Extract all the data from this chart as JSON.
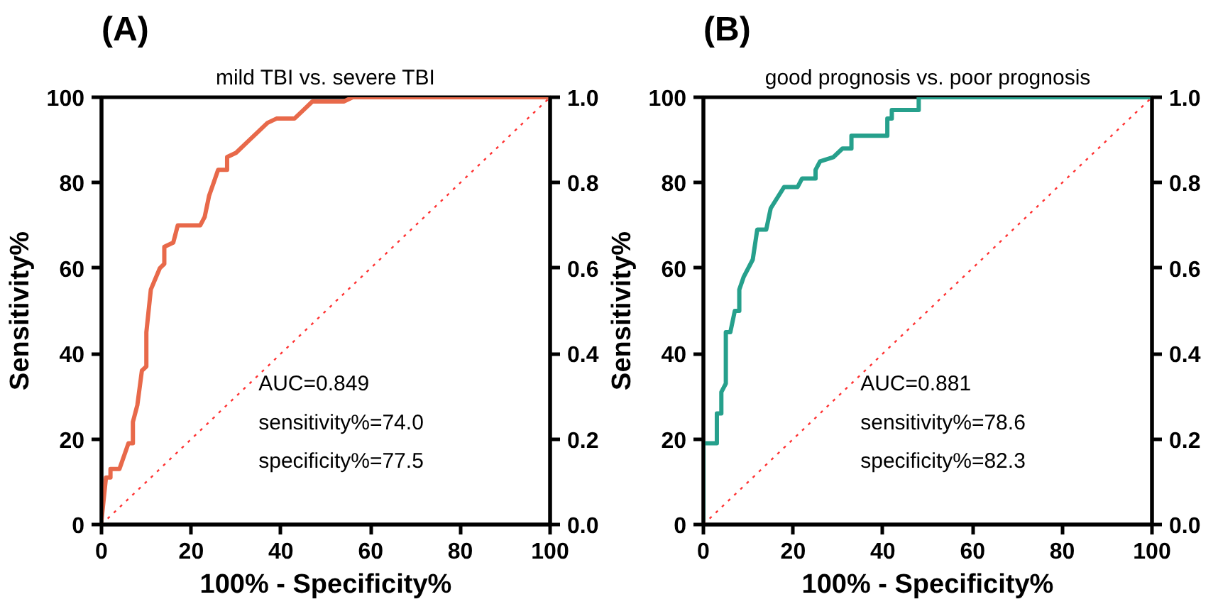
{
  "chart_data": [
    {
      "type": "line",
      "title": "mild TBI vs. severe TBI",
      "xlabel": "100% - Specificity%",
      "ylabel": "Sensitivity%",
      "xlim": [
        0,
        100
      ],
      "ylim": [
        0,
        100
      ],
      "xticks": [
        0,
        20,
        40,
        60,
        80,
        100
      ],
      "yticks": [
        0,
        20,
        40,
        60,
        80,
        100
      ],
      "y2lim": [
        0,
        1
      ],
      "y2ticks": [
        {
          "value": 0,
          "label": "0.0"
        },
        {
          "value": 0.2,
          "label": "0.2"
        },
        {
          "value": 0.4,
          "label": "0.4"
        },
        {
          "value": 0.6,
          "label": "0.6"
        },
        {
          "value": 0.8,
          "label": "0.8"
        },
        {
          "value": 1,
          "label": "1.0"
        }
      ],
      "grid": false,
      "annotations": [
        "(A)",
        "AUC=0.849",
        "sensitivity%=74.0",
        "specificity%=77.5"
      ],
      "series": [
        {
          "color": "#e8694a",
          "line_style": "solid",
          "x": [
            0,
            1,
            2,
            2,
            4,
            5,
            6,
            7,
            7,
            8,
            9,
            10,
            10,
            11,
            13,
            14,
            14,
            16,
            17,
            22,
            23,
            24,
            25,
            26,
            28,
            28,
            30,
            33,
            37,
            39,
            43,
            45,
            47,
            54,
            56,
            100
          ],
          "values": [
            1,
            11,
            11,
            13,
            13,
            16,
            19,
            19,
            24,
            28,
            36,
            37,
            45,
            55,
            60,
            61,
            65,
            66,
            70,
            70,
            72,
            77,
            80,
            83,
            83,
            86,
            87,
            90,
            94,
            95,
            95,
            97,
            99,
            99,
            100,
            100
          ]
        },
        {
          "color": "#ff3333",
          "line_style": "dotted",
          "x": [
            0,
            100
          ],
          "values": [
            0,
            100
          ]
        }
      ]
    },
    {
      "type": "line",
      "title": "good prognosis vs. poor prognosis",
      "xlabel": "100% - Specificity%",
      "ylabel": "Sensitivity%",
      "xlim": [
        0,
        100
      ],
      "ylim": [
        0,
        100
      ],
      "xticks": [
        0,
        20,
        40,
        60,
        80,
        100
      ],
      "yticks": [
        0,
        20,
        40,
        60,
        80,
        100
      ],
      "y2lim": [
        0,
        1
      ],
      "y2ticks": [
        {
          "value": 0,
          "label": "0.0"
        },
        {
          "value": 0.2,
          "label": "0.2"
        },
        {
          "value": 0.4,
          "label": "0.4"
        },
        {
          "value": 0.6,
          "label": "0.6"
        },
        {
          "value": 0.8,
          "label": "0.8"
        },
        {
          "value": 1,
          "label": "1.0"
        }
      ],
      "grid": false,
      "annotations": [
        "(B)",
        "AUC=0.881",
        "sensitivity%=78.6",
        "specificity%=82.3"
      ],
      "series": [
        {
          "color": "#26a08c",
          "line_style": "solid",
          "x": [
            0,
            0,
            3,
            3,
            4,
            4,
            5,
            5,
            6,
            7,
            8,
            8,
            9,
            11,
            12,
            14,
            15,
            18,
            21,
            22,
            25,
            25,
            26,
            29,
            31,
            33,
            33,
            41,
            41,
            42,
            42,
            48,
            48,
            100
          ],
          "values": [
            1,
            19,
            19,
            26,
            26,
            31,
            33,
            45,
            45,
            50,
            50,
            55,
            58,
            62,
            69,
            69,
            74,
            79,
            79,
            81,
            81,
            83,
            85,
            86,
            88,
            88,
            91,
            91,
            95,
            95,
            97,
            97,
            100,
            100
          ]
        },
        {
          "color": "#ff3333",
          "line_style": "dotted",
          "x": [
            0,
            100
          ],
          "values": [
            0,
            100
          ]
        }
      ]
    }
  ]
}
